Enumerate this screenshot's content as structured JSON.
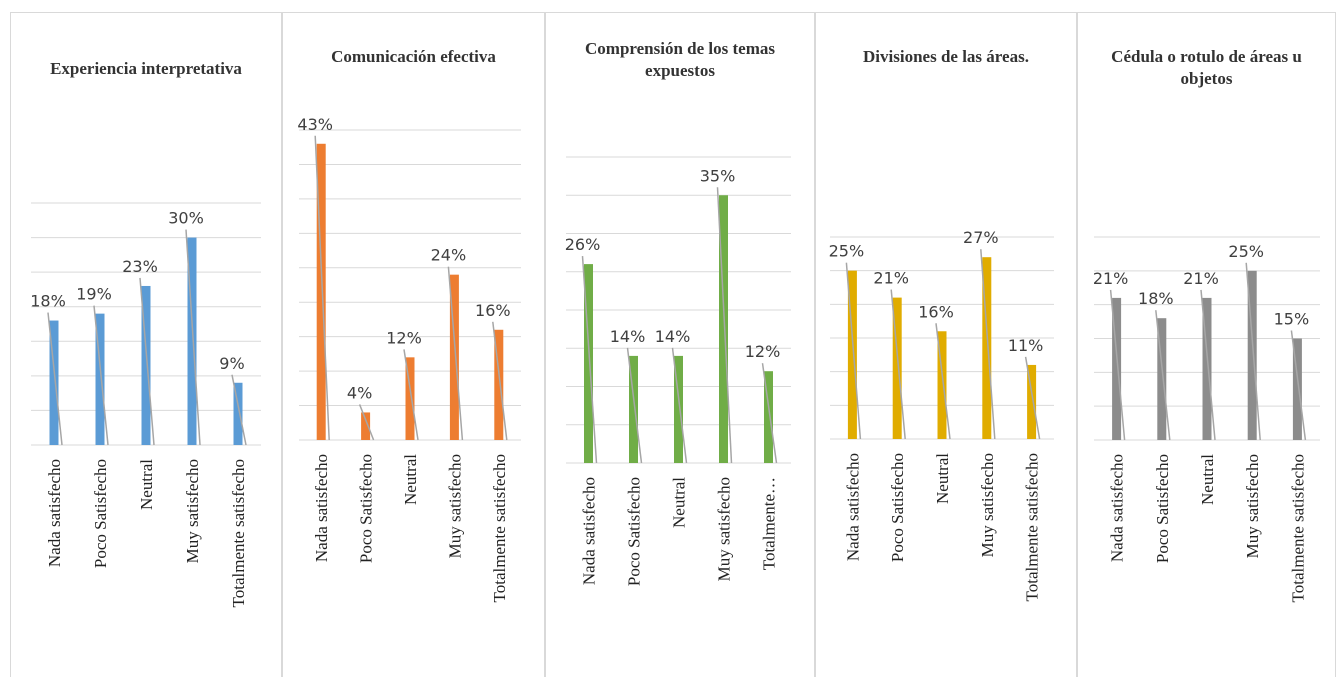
{
  "chart_data": [
    {
      "type": "bar",
      "title": "Experiencia interpretativa",
      "categories": [
        "Nada satisfecho",
        "Poco Satisfecho",
        "Neutral",
        "Muy satisfecho",
        "Totalmente satisfecho"
      ],
      "values": [
        18,
        19,
        23,
        30,
        9
      ],
      "value_labels": [
        "18%",
        "19%",
        "23%",
        "30%",
        "9%"
      ],
      "color": "#5b9bd5",
      "ylim": [
        0,
        35
      ],
      "yticks": [
        0,
        5,
        10,
        15,
        20,
        25,
        30,
        35
      ],
      "grid": true
    },
    {
      "type": "bar",
      "title": "Comunicación efectiva",
      "categories": [
        "Nada satisfecho",
        "Poco Satisfecho",
        "Neutral",
        "Muy satisfecho",
        "Totalmente satisfecho"
      ],
      "values": [
        43,
        4,
        12,
        24,
        16
      ],
      "value_labels": [
        "43%",
        "4%",
        "12%",
        "24%",
        "16%"
      ],
      "color": "#ed7d31",
      "ylim": [
        0,
        45
      ],
      "yticks": [
        0,
        5,
        10,
        15,
        20,
        25,
        30,
        35,
        40,
        45
      ],
      "grid": true
    },
    {
      "type": "bar",
      "title": "Comprensión de los temas expuestos",
      "categories": [
        "Nada satisfecho",
        "Poco Satisfecho",
        "Neutral",
        "Muy satisfecho",
        "Totalmente…"
      ],
      "values": [
        26,
        14,
        14,
        35,
        12
      ],
      "value_labels": [
        "26%",
        "14%",
        "14%",
        "35%",
        "12%"
      ],
      "color": "#70ad47",
      "ylim": [
        0,
        40
      ],
      "yticks": [
        0,
        5,
        10,
        15,
        20,
        25,
        30,
        35,
        40
      ],
      "grid": true
    },
    {
      "type": "bar",
      "title": "Divisiones de las áreas.",
      "categories": [
        "Nada satisfecho",
        "Poco Satisfecho",
        "Neutral",
        "Muy satisfecho",
        "Totalmente satisfecho"
      ],
      "values": [
        25,
        21,
        16,
        27,
        11
      ],
      "value_labels": [
        "25%",
        "21%",
        "16%",
        "27%",
        "11%"
      ],
      "color": "#e0ac00",
      "ylim": [
        0,
        30
      ],
      "yticks": [
        0,
        5,
        10,
        15,
        20,
        25,
        30
      ],
      "grid": true
    },
    {
      "type": "bar",
      "title": "Cédula o rotulo de áreas u objetos",
      "categories": [
        "Nada satisfecho",
        "Poco Satisfecho",
        "Neutral",
        "Muy satisfecho",
        "Totalmente satisfecho"
      ],
      "values": [
        21,
        18,
        21,
        25,
        15
      ],
      "value_labels": [
        "21%",
        "18%",
        "21%",
        "25%",
        "15%"
      ],
      "color": "#8c8c8c",
      "ylim": [
        0,
        30
      ],
      "yticks": [
        0,
        5,
        10,
        15,
        20,
        25,
        30
      ],
      "grid": true
    }
  ]
}
